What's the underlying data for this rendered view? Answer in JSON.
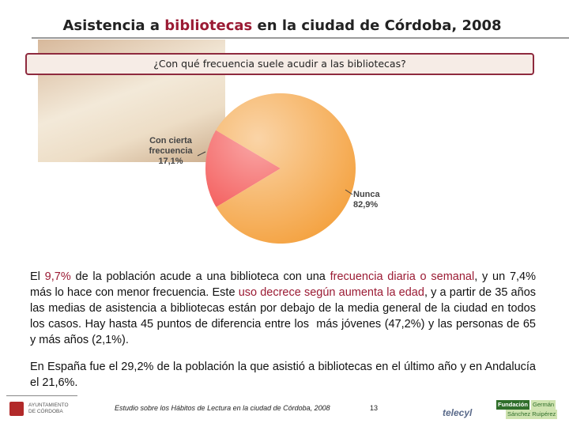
{
  "title_parts": [
    {
      "text": "Asistencia a ",
      "highlight": false
    },
    {
      "text": "bibliotecas",
      "highlight": true
    },
    {
      "text": " en la ciudad de Córdoba, 2008",
      "highlight": false
    }
  ],
  "chart_data": {
    "type": "pie",
    "title": "¿Con qué frecuencia suele acudir a las bibliotecas?",
    "categories": [
      "Con cierta frecuencia",
      "Nunca"
    ],
    "values": [
      17.1,
      82.9
    ],
    "value_labels": [
      "17,1%",
      "82,9%"
    ],
    "colors": [
      "#f2403f",
      "#f4a03c"
    ]
  },
  "paragraphs": [
    [
      {
        "text": "El ",
        "highlight": false
      },
      {
        "text": "9,7%",
        "highlight": true
      },
      {
        "text": " de la población acude a una biblioteca con una ",
        "highlight": false
      },
      {
        "text": "frecuencia diaria o semanal",
        "highlight": true
      },
      {
        "text": ", y un 7,4% más lo hace con menor frecuencia. Este ",
        "highlight": false
      },
      {
        "text": "uso decrece según aumenta la edad",
        "highlight": true
      },
      {
        "text": ", y a partir de 35 años las medias de asistencia a bibliotecas están por debajo de la media general de la ciudad en todos los casos. Hay hasta 45 puntos de diferencia entre los  más jóvenes (47,2%) y las personas de 65 y más años (2,1%).",
        "highlight": false
      }
    ],
    [
      {
        "text": "En España fue el 29,2% de la población la que asistió a bibliotecas en el último año y en Andalucía el 21,6%.",
        "highlight": false
      }
    ]
  ],
  "footer": {
    "text": "Estudio sobre los Hábitos de Lectura en la ciudad de Córdoba, 2008",
    "page": 13,
    "logo_left": [
      "AYUNTAMIENTO",
      "DE CÓRDOBA"
    ],
    "logo_center": "telecyl",
    "logo_right": [
      "Fundación",
      "Germán",
      "Sánchez Ruipérez"
    ]
  }
}
